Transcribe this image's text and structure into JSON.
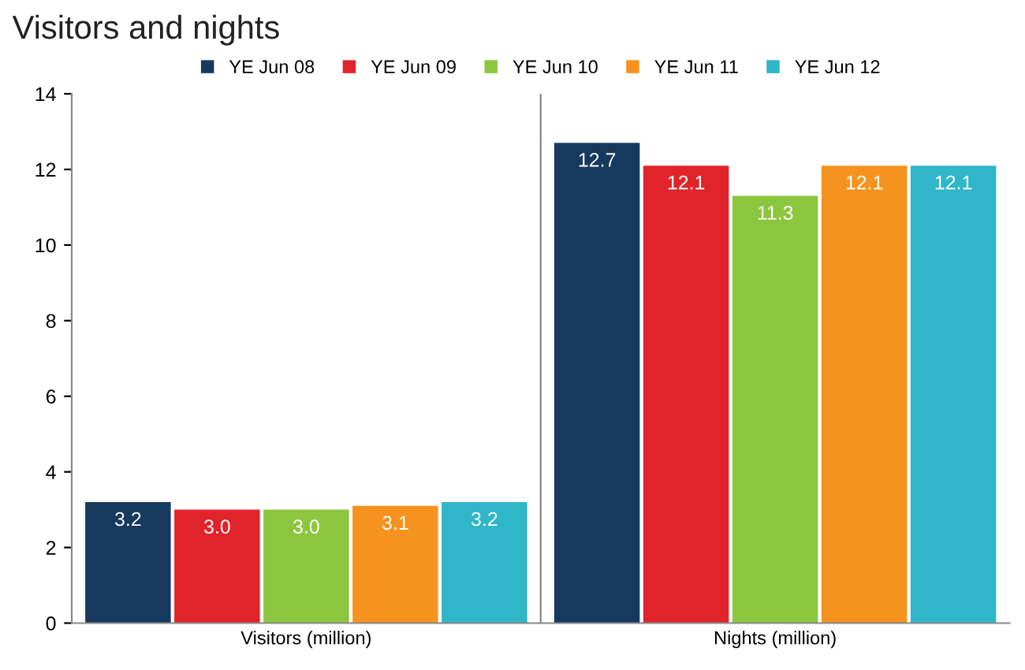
{
  "chart_data": {
    "type": "bar",
    "title": "Visitors and nights",
    "categories": [
      "Visitors (million)",
      "Nights (million)"
    ],
    "series": [
      {
        "name": "YE Jun 08",
        "color": "#163a5f",
        "values": [
          3.2,
          12.7
        ],
        "value_labels": [
          "3.2",
          "12.7"
        ]
      },
      {
        "name": "YE Jun 09",
        "color": "#e0242a",
        "values": [
          3.0,
          12.1
        ],
        "value_labels": [
          "3.0",
          "12.1"
        ]
      },
      {
        "name": "YE Jun 10",
        "color": "#8cc63e",
        "values": [
          3.0,
          11.3
        ],
        "value_labels": [
          "3.0",
          "11.3"
        ]
      },
      {
        "name": "YE Jun 11",
        "color": "#f6931e",
        "values": [
          3.1,
          12.1
        ],
        "value_labels": [
          "3.1",
          "12.1"
        ]
      },
      {
        "name": "YE Jun 12",
        "color": "#2fb6c8",
        "values": [
          3.2,
          12.1
        ],
        "value_labels": [
          "3.2",
          "12.1"
        ]
      }
    ],
    "ylim": [
      0,
      14
    ],
    "yticks": [
      0,
      2,
      4,
      6,
      8,
      10,
      12,
      14
    ],
    "legend": "top",
    "grid": false
  }
}
